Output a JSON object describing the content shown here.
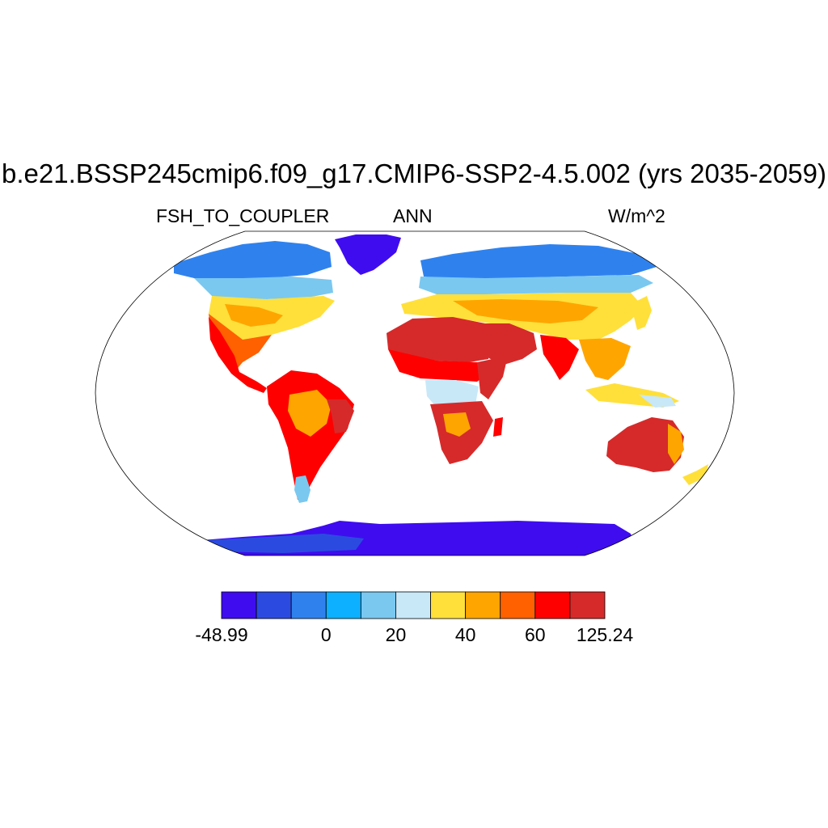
{
  "title": "b.e21.BSSP245cmip6.f09_g17.CMIP6-SSP2-4.5.002 (yrs 2035-2059)",
  "subtitle_left": "FSH_TO_COUPLER",
  "subtitle_center": "ANN",
  "subtitle_right": "W/m^2",
  "colorbar": {
    "colors": [
      "#3f0cf0",
      "#2b4be0",
      "#2f82ee",
      "#0db0ff",
      "#7ac8f0",
      "#c8e8f8",
      "#ffe03a",
      "#ffa500",
      "#ff6000",
      "#ff0000",
      "#d62a2a"
    ],
    "labels": [
      "-48.99",
      "0",
      "20",
      "40",
      "60",
      "125.24"
    ],
    "label_box_index": [
      0,
      3,
      5,
      7,
      9,
      11
    ]
  },
  "map": {
    "projection": "Robinson",
    "variable_pattern": {
      "antarctica": "#3f0cf0",
      "greenland": "#3f0cf0",
      "high_latitudes": "#2f82ee",
      "subarctic": "#7ac8f0",
      "midlatitudes": "#ffe03a",
      "subtropics": "#ff0000",
      "deserts": "#d62a2a"
    }
  }
}
